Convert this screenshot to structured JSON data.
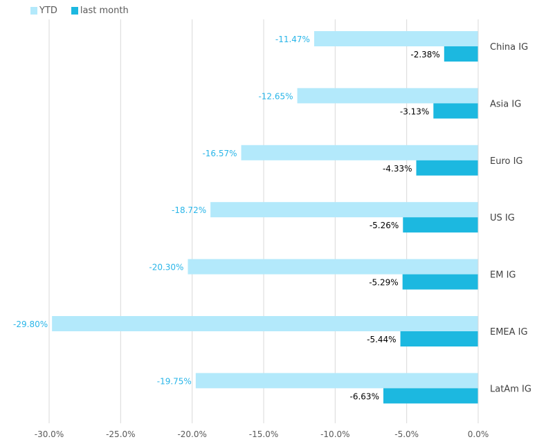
{
  "chart_data": {
    "type": "bar",
    "orientation": "horizontal",
    "categories": [
      "China IG",
      "Asia IG",
      "Euro IG",
      "US IG",
      "EM IG",
      "EMEA IG",
      "LatAm IG"
    ],
    "series": [
      {
        "name": "YTD",
        "color": "#B3E9FB",
        "label_color": "#29B5E8",
        "values": [
          -11.47,
          -12.65,
          -16.57,
          -18.72,
          -20.3,
          -29.8,
          -19.75
        ],
        "labels": [
          "-11.47%",
          "-12.65%",
          "-16.57%",
          "-18.72%",
          "-20.30%",
          "-29.80%",
          "-19.75%"
        ]
      },
      {
        "name": "last month",
        "color": "#1CB8E0",
        "label_color": "#000000",
        "values": [
          -2.38,
          -3.13,
          -4.33,
          -5.26,
          -5.29,
          -5.44,
          -6.63
        ],
        "labels": [
          "-2.38%",
          "-3.13%",
          "-4.33%",
          "-5.26%",
          "-5.29%",
          "-5.44%",
          "-6.63%"
        ]
      }
    ],
    "xlim": [
      -30,
      0
    ],
    "xticks": [
      -30,
      -25,
      -20,
      -15,
      -10,
      -5,
      0
    ],
    "xtick_labels": [
      "-30.0%",
      "-25.0%",
      "-20.0%",
      "-15.0%",
      "-10.0%",
      "-5.0%",
      "0.0%"
    ],
    "grid": true,
    "legend": "top-left",
    "title": "",
    "xlabel": "",
    "ylabel": ""
  }
}
